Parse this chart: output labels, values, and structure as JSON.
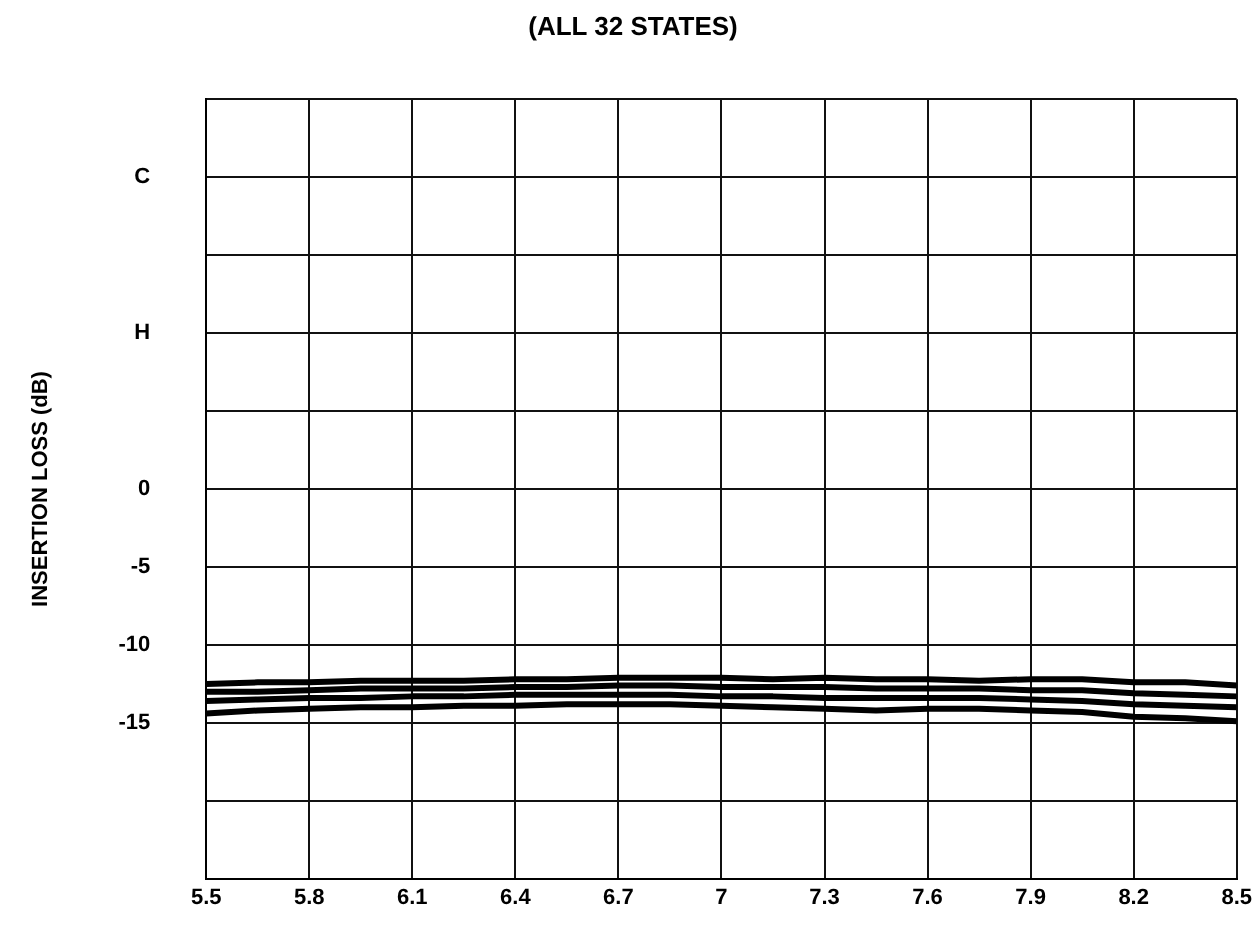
{
  "chart_data": {
    "type": "line",
    "title": "(ALL 32 STATES)",
    "ylabel": "INSERTION LOSS (dB)",
    "x": [
      5.5,
      5.65,
      5.8,
      5.95,
      6.1,
      6.25,
      6.4,
      6.55,
      6.7,
      6.85,
      7,
      7.15,
      7.3,
      7.45,
      7.6,
      7.75,
      7.9,
      8.05,
      8.2,
      8.35,
      8.5
    ],
    "series": [
      {
        "color": "#000000",
        "values": [
          -12.5,
          -12.4,
          -12.4,
          -12.3,
          -12.3,
          -12.3,
          -12.2,
          -12.2,
          -12.1,
          -12.1,
          -12.1,
          -12.2,
          -12.1,
          -12.2,
          -12.2,
          -12.3,
          -12.2,
          -12.2,
          -12.4,
          -12.4,
          -12.6
        ]
      },
      {
        "color": "#000000",
        "values": [
          -13.0,
          -13.0,
          -12.9,
          -12.8,
          -12.8,
          -12.8,
          -12.7,
          -12.7,
          -12.6,
          -12.6,
          -12.7,
          -12.7,
          -12.7,
          -12.8,
          -12.8,
          -12.8,
          -12.9,
          -12.9,
          -13.1,
          -13.2,
          -13.3
        ]
      },
      {
        "color": "#000000",
        "values": [
          -13.6,
          -13.5,
          -13.4,
          -13.4,
          -13.3,
          -13.3,
          -13.2,
          -13.2,
          -13.2,
          -13.2,
          -13.3,
          -13.3,
          -13.4,
          -13.4,
          -13.4,
          -13.4,
          -13.5,
          -13.6,
          -13.8,
          -13.9,
          -14.0
        ]
      },
      {
        "color": "#000000",
        "values": [
          -14.4,
          -14.2,
          -14.1,
          -14.0,
          -14.0,
          -13.9,
          -13.9,
          -13.8,
          -13.8,
          -13.8,
          -13.9,
          -14.0,
          -14.1,
          -14.2,
          -14.1,
          -14.1,
          -14.2,
          -14.3,
          -14.6,
          -14.7,
          -14.9
        ]
      }
    ],
    "xlim": [
      5.5,
      8.5
    ],
    "xticks": [
      5.5,
      5.8,
      6.1,
      6.4,
      6.7,
      7,
      7.3,
      7.6,
      7.9,
      8.2,
      8.5
    ],
    "ylim": [
      -25,
      25
    ],
    "yticks": [
      {
        "value": 25,
        "label": null
      },
      {
        "value": 20,
        "label": "C"
      },
      {
        "value": 15,
        "label": null
      },
      {
        "value": 10,
        "label": "H"
      },
      {
        "value": 5,
        "label": null
      },
      0,
      -5,
      -10,
      -15,
      {
        "value": -20,
        "label": null
      },
      {
        "value": -25,
        "label": null
      }
    ],
    "grid": true,
    "legend": false,
    "marker": "none",
    "line_style": "solid"
  }
}
